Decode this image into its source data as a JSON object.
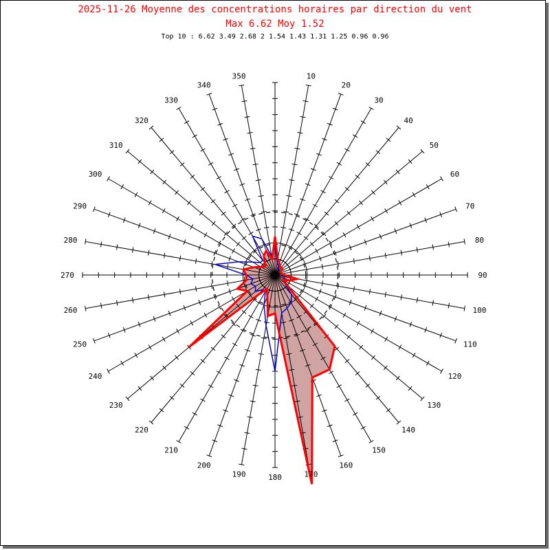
{
  "header": {
    "title": "2025-11-26 Moyenne des concentrations horaires par direction du vent",
    "subtitle": "Max 6.62 Moy 1.52",
    "top10": "Top 10 : 6.62 3.49 2.68 2 1.54 1.43 1.31 1.25 0.96 0.96"
  },
  "chart_data": {
    "type": "polar-rose",
    "title": "2025-11-26 Moyenne des concentrations horaires par direction du vent",
    "subtitle": "Max 6.62 Moy 1.52",
    "top10": [
      6.62,
      3.49,
      2.68,
      2,
      1.54,
      1.43,
      1.31,
      1.25,
      0.96,
      0.96
    ],
    "direction_labels": [
      "10",
      "20",
      "30",
      "40",
      "50",
      "60",
      "70",
      "80",
      "90",
      "100",
      "110",
      "120",
      "130",
      "140",
      "150",
      "160",
      "170",
      "180",
      "190",
      "200",
      "210",
      "220",
      "230",
      "240",
      "250",
      "260",
      "270",
      "280",
      "290",
      "300",
      "310",
      "320",
      "330",
      "340",
      "350"
    ],
    "radial_max": 6.0,
    "tick_step": 0.5,
    "reference_circles": [
      0.96,
      1.96
    ],
    "colors": {
      "mean": "#ff0000",
      "mean_fill": "#d1a4a4",
      "other": "#0000cc",
      "axes": "#000000",
      "title": "#ff0000"
    },
    "series": [
      {
        "color": "#ff0000",
        "directions": [
          0,
          10,
          20,
          30,
          40,
          50,
          60,
          70,
          80,
          90,
          100,
          110,
          120,
          130,
          140,
          150,
          160,
          170,
          180,
          190,
          200,
          210,
          220,
          230,
          240,
          250,
          260,
          270,
          280,
          290,
          300,
          310,
          320,
          330,
          340,
          350
        ],
        "values": [
          1.2,
          0.5,
          0.4,
          0.3,
          0.3,
          0.3,
          0.2,
          0.2,
          0.2,
          0.3,
          0.7,
          0.5,
          0.3,
          0.5,
          2.9,
          3.4,
          3.4,
          6.62,
          1.2,
          1.3,
          0.7,
          0.5,
          0.8,
          3.49,
          1.0,
          1.25,
          0.9,
          0.9,
          1.0,
          0.7,
          0.5,
          0.4,
          0.5,
          0.7,
          0.8,
          0.5
        ]
      },
      {
        "color": "#0000cc",
        "directions": [
          0,
          10,
          20,
          30,
          40,
          50,
          60,
          70,
          80,
          90,
          100,
          110,
          120,
          130,
          140,
          150,
          160,
          170,
          180,
          190,
          200,
          210,
          220,
          230,
          240,
          250,
          260,
          270,
          280,
          290,
          300,
          310,
          320,
          330,
          340,
          350
        ],
        "values": [
          0.9,
          0.4,
          0.3,
          0.2,
          0.2,
          0.2,
          0.2,
          0.2,
          0.2,
          0.2,
          0.3,
          0.3,
          0.3,
          0.4,
          0.8,
          1.0,
          1.1,
          1.2,
          3.0,
          1.6,
          1.0,
          0.6,
          0.6,
          0.8,
          0.7,
          0.8,
          0.7,
          0.9,
          1.9,
          1.2,
          0.8,
          0.6,
          0.6,
          1.4,
          1.2,
          0.6
        ]
      }
    ]
  }
}
